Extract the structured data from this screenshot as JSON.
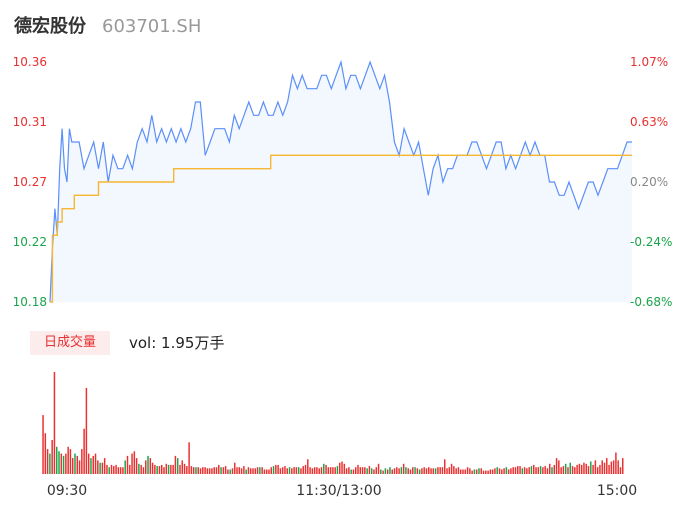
{
  "header": {
    "name": "德宏股份",
    "code": "603701.SH"
  },
  "colors": {
    "price_line": "#5b8ff9",
    "price_fill": "#f3f7fe",
    "avg_line": "#f5b731",
    "up": "#e93030",
    "down": "#1aa34a",
    "neutral": "#888888"
  },
  "volume_panel": {
    "tag": "日成交量",
    "text": "vol: 1.95万手"
  },
  "chart_data": [
    {
      "type": "line",
      "name": "intraday-price",
      "x_ticks": [
        "09:30",
        "11:30/13:00",
        "15:00"
      ],
      "y_left_ticks": [
        "10.36",
        "10.31",
        "10.27",
        "10.22",
        "10.18"
      ],
      "y_right_ticks": [
        "1.07%",
        "0.63%",
        "0.20%",
        "-0.24%",
        "-0.68%"
      ],
      "y_range": [
        10.18,
        10.36
      ],
      "reference_price": 10.25,
      "session_minutes": 240,
      "series": [
        {
          "role": "price",
          "points": [
            [
              0,
              10.18
            ],
            [
              1,
              10.22
            ],
            [
              2,
              10.25
            ],
            [
              3,
              10.23
            ],
            [
              4,
              10.28
            ],
            [
              5,
              10.31
            ],
            [
              6,
              10.28
            ],
            [
              7,
              10.27
            ],
            [
              8,
              10.31
            ],
            [
              9,
              10.3
            ],
            [
              10,
              10.3
            ],
            [
              12,
              10.3
            ],
            [
              14,
              10.28
            ],
            [
              16,
              10.29
            ],
            [
              18,
              10.3
            ],
            [
              20,
              10.28
            ],
            [
              22,
              10.3
            ],
            [
              24,
              10.27
            ],
            [
              26,
              10.29
            ],
            [
              28,
              10.28
            ],
            [
              30,
              10.28
            ],
            [
              32,
              10.29
            ],
            [
              34,
              10.28
            ],
            [
              36,
              10.3
            ],
            [
              38,
              10.31
            ],
            [
              40,
              10.3
            ],
            [
              42,
              10.32
            ],
            [
              44,
              10.3
            ],
            [
              46,
              10.31
            ],
            [
              48,
              10.3
            ],
            [
              50,
              10.31
            ],
            [
              52,
              10.3
            ],
            [
              54,
              10.31
            ],
            [
              56,
              10.3
            ],
            [
              58,
              10.31
            ],
            [
              60,
              10.33
            ],
            [
              62,
              10.33
            ],
            [
              64,
              10.29
            ],
            [
              66,
              10.3
            ],
            [
              68,
              10.31
            ],
            [
              70,
              10.31
            ],
            [
              72,
              10.31
            ],
            [
              74,
              10.3
            ],
            [
              76,
              10.32
            ],
            [
              78,
              10.31
            ],
            [
              80,
              10.32
            ],
            [
              82,
              10.33
            ],
            [
              84,
              10.32
            ],
            [
              86,
              10.32
            ],
            [
              88,
              10.33
            ],
            [
              90,
              10.32
            ],
            [
              92,
              10.32
            ],
            [
              94,
              10.33
            ],
            [
              96,
              10.32
            ],
            [
              98,
              10.33
            ],
            [
              100,
              10.35
            ],
            [
              102,
              10.34
            ],
            [
              104,
              10.35
            ],
            [
              106,
              10.34
            ],
            [
              108,
              10.34
            ],
            [
              110,
              10.34
            ],
            [
              112,
              10.35
            ],
            [
              114,
              10.35
            ],
            [
              116,
              10.34
            ],
            [
              118,
              10.35
            ],
            [
              120,
              10.36
            ],
            [
              122,
              10.34
            ],
            [
              124,
              10.35
            ],
            [
              126,
              10.35
            ],
            [
              128,
              10.34
            ],
            [
              130,
              10.35
            ],
            [
              132,
              10.36
            ],
            [
              134,
              10.35
            ],
            [
              136,
              10.34
            ],
            [
              138,
              10.35
            ],
            [
              140,
              10.33
            ],
            [
              142,
              10.3
            ],
            [
              144,
              10.29
            ],
            [
              146,
              10.31
            ],
            [
              148,
              10.3
            ],
            [
              150,
              10.29
            ],
            [
              152,
              10.3
            ],
            [
              154,
              10.28
            ],
            [
              156,
              10.26
            ],
            [
              158,
              10.28
            ],
            [
              160,
              10.29
            ],
            [
              162,
              10.27
            ],
            [
              164,
              10.28
            ],
            [
              166,
              10.28
            ],
            [
              168,
              10.29
            ],
            [
              170,
              10.29
            ],
            [
              172,
              10.29
            ],
            [
              174,
              10.3
            ],
            [
              176,
              10.3
            ],
            [
              178,
              10.29
            ],
            [
              180,
              10.28
            ],
            [
              182,
              10.29
            ],
            [
              184,
              10.3
            ],
            [
              186,
              10.3
            ],
            [
              188,
              10.28
            ],
            [
              190,
              10.29
            ],
            [
              192,
              10.28
            ],
            [
              194,
              10.29
            ],
            [
              196,
              10.3
            ],
            [
              198,
              10.29
            ],
            [
              200,
              10.3
            ],
            [
              202,
              10.29
            ],
            [
              204,
              10.29
            ],
            [
              206,
              10.27
            ],
            [
              208,
              10.27
            ],
            [
              210,
              10.26
            ],
            [
              212,
              10.26
            ],
            [
              214,
              10.27
            ],
            [
              216,
              10.26
            ],
            [
              218,
              10.25
            ],
            [
              220,
              10.26
            ],
            [
              222,
              10.27
            ],
            [
              224,
              10.27
            ],
            [
              226,
              10.26
            ],
            [
              228,
              10.27
            ],
            [
              230,
              10.28
            ],
            [
              232,
              10.28
            ],
            [
              234,
              10.28
            ],
            [
              236,
              10.29
            ],
            [
              238,
              10.3
            ],
            [
              240,
              10.3
            ]
          ]
        },
        {
          "role": "average",
          "points": [
            [
              0,
              10.18
            ],
            [
              1,
              10.23
            ],
            [
              3,
              10.24
            ],
            [
              5,
              10.25
            ],
            [
              7,
              10.25
            ],
            [
              10,
              10.26
            ],
            [
              15,
              10.26
            ],
            [
              20,
              10.27
            ],
            [
              40,
              10.27
            ],
            [
              50,
              10.27
            ],
            [
              51,
              10.28
            ],
            [
              90,
              10.28
            ],
            [
              91,
              10.29
            ],
            [
              140,
              10.29
            ],
            [
              200,
              10.29
            ],
            [
              240,
              10.29
            ]
          ]
        }
      ]
    },
    {
      "type": "bar",
      "name": "volume",
      "unit": "手",
      "volumes": [
        260,
        180,
        110,
        90,
        150,
        450,
        120,
        100,
        90,
        80,
        90,
        120,
        110,
        70,
        90,
        80,
        60,
        110,
        200,
        380,
        90,
        70,
        80,
        90,
        60,
        50,
        50,
        70,
        40,
        30,
        40,
        35,
        40,
        30,
        30,
        30,
        60,
        80,
        40,
        90,
        100,
        70,
        45,
        40,
        30,
        60,
        80,
        70,
        50,
        40,
        35,
        35,
        40,
        30,
        45,
        40,
        40,
        40,
        80,
        70,
        40,
        60,
        45,
        35,
        140,
        35,
        30,
        30,
        30,
        25,
        30,
        30,
        25,
        25,
        25,
        30,
        30,
        40,
        30,
        30,
        35,
        20,
        20,
        25,
        50,
        30,
        30,
        25,
        35,
        20,
        30,
        25,
        25,
        25,
        30,
        30,
        30,
        20,
        20,
        20,
        30,
        35,
        40,
        40,
        25,
        30,
        35,
        25,
        30,
        25,
        30,
        30,
        30,
        25,
        35,
        40,
        65,
        30,
        25,
        30,
        30,
        25,
        30,
        45,
        40,
        30,
        30,
        30,
        30,
        35,
        50,
        55,
        45,
        25,
        30,
        20,
        20,
        30,
        40,
        30,
        30,
        30,
        25,
        35,
        25,
        20,
        30,
        45,
        20,
        15,
        25,
        20,
        30,
        20,
        25,
        30,
        25,
        30,
        45,
        30,
        25,
        20,
        30,
        30,
        25,
        20,
        25,
        30,
        25,
        30,
        25,
        25,
        25,
        30,
        30,
        30,
        65,
        25,
        30,
        45,
        35,
        25,
        30,
        20,
        20,
        20,
        30,
        25,
        15,
        20,
        20,
        25,
        25,
        15,
        15,
        15,
        20,
        20,
        25,
        30,
        25,
        20,
        25,
        30,
        20,
        25,
        30,
        30,
        35,
        35,
        25,
        30,
        25,
        30,
        35,
        40,
        30,
        30,
        35,
        30,
        35,
        25,
        45,
        30,
        40,
        70,
        60,
        30,
        35,
        45,
        30,
        50,
        35,
        30,
        40,
        45,
        40,
        50,
        45,
        35,
        55,
        40,
        60,
        30,
        40,
        60,
        50,
        70,
        40,
        55,
        60,
        95,
        60,
        30,
        70
      ],
      "y_range": [
        0,
        450
      ]
    }
  ]
}
